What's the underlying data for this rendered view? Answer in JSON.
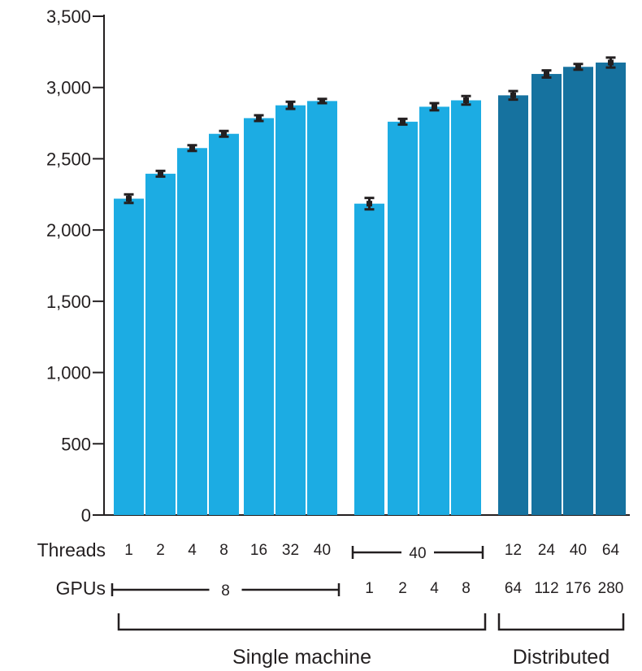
{
  "chart_data": {
    "type": "bar",
    "categories": [
      "1",
      "2",
      "4",
      "8",
      "16",
      "32",
      "40",
      "1",
      "2",
      "4",
      "8",
      "12",
      "24",
      "40",
      "64"
    ],
    "values": [
      2220,
      2395,
      2575,
      2675,
      2785,
      2875,
      2905,
      2185,
      2760,
      2865,
      2910,
      2945,
      3095,
      3145,
      3175
    ],
    "error": [
      30,
      20,
      20,
      20,
      20,
      25,
      15,
      40,
      20,
      25,
      30,
      30,
      25,
      20,
      35
    ],
    "bar_groups": [
      "single",
      "single",
      "single",
      "single",
      "single",
      "single",
      "single",
      "single",
      "single",
      "single",
      "single",
      "distributed",
      "distributed",
      "distributed",
      "distributed"
    ],
    "ylim": [
      0,
      3500
    ],
    "yticks": [
      0,
      500,
      1000,
      1500,
      2000,
      2500,
      3000,
      3500
    ],
    "ytick_labels": [
      "0",
      "500",
      "1,000",
      "1,500",
      "2,000",
      "2,500",
      "3,000",
      "3,500"
    ],
    "colors": {
      "single": "#1cace3",
      "distributed": "#16729f",
      "ink": "#231f20"
    },
    "rows": {
      "threads_label": "Threads",
      "gpus_label": "GPUs",
      "threads": [
        "1",
        "2",
        "4",
        "8",
        "16",
        "32",
        "40",
        "",
        "",
        "",
        "",
        "12",
        "24",
        "40",
        "64"
      ],
      "gpus": [
        "",
        "",
        "",
        "",
        "",
        "",
        "",
        "1",
        "2",
        "4",
        "8",
        "64",
        "112",
        "176",
        "280"
      ],
      "threads_span": {
        "label": "40",
        "from": 7,
        "to": 10
      },
      "gpus_span": {
        "label": "8",
        "from": 0,
        "to": 6
      }
    },
    "groups": [
      {
        "label": "Single machine",
        "from": 0,
        "to": 10
      },
      {
        "label": "Distributed",
        "from": 11,
        "to": 14
      }
    ],
    "title": "",
    "xlabel": "",
    "ylabel": ""
  }
}
